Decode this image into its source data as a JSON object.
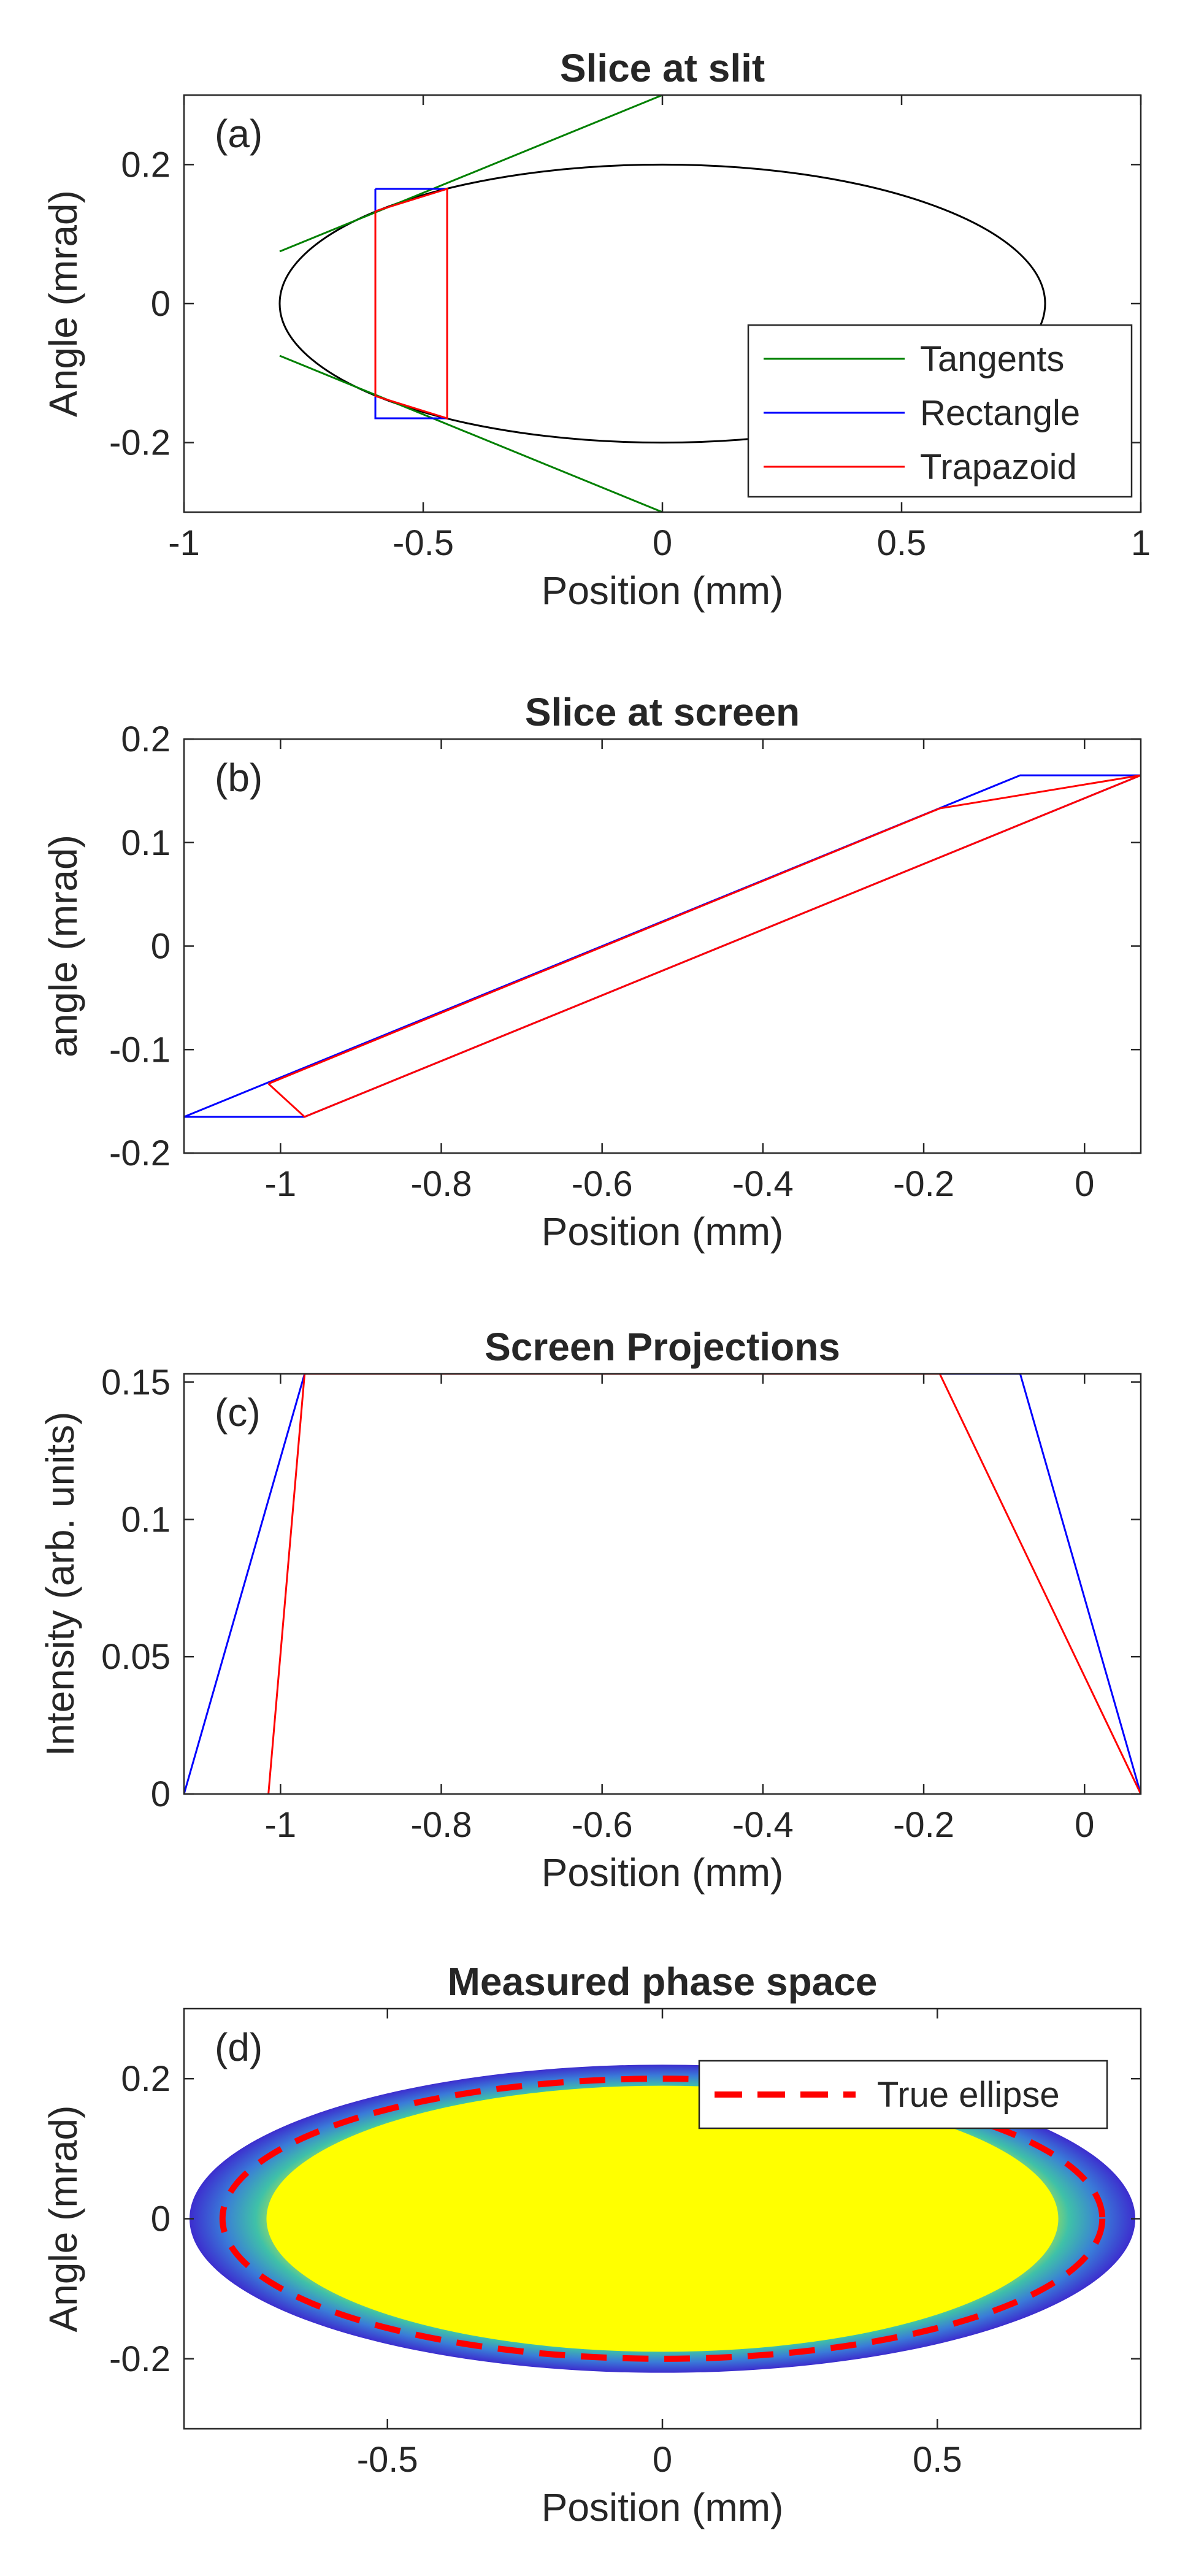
{
  "chart_data": [
    {
      "panel": "a",
      "type": "line",
      "title": "Slice at slit",
      "label": "(a)",
      "xlabel": "Position (mm)",
      "ylabel": "Angle (mrad)",
      "xlim": [
        -1,
        1
      ],
      "ylim": [
        -0.3,
        0.3
      ],
      "xticks": [
        -1,
        -0.5,
        0,
        0.5,
        1
      ],
      "xtick_labels": [
        "-1",
        "-0.5",
        "0",
        "0.5",
        "1"
      ],
      "yticks": [
        -0.2,
        0,
        0.2
      ],
      "ytick_labels": [
        "-0.2",
        "0",
        "0.2"
      ],
      "ellipse": {
        "cx": 0,
        "cy": 0,
        "a": 0.8,
        "b": 0.2,
        "color": "#000000"
      },
      "series": [
        {
          "name": "Tangents",
          "color": "#008000",
          "segments": [
            [
              [
                -0.8,
                0.075
              ],
              [
                0,
                0.3
              ]
            ],
            [
              [
                -0.8,
                -0.075
              ],
              [
                0,
                -0.3
              ]
            ]
          ]
        },
        {
          "name": "Rectangle",
          "color": "#0000ff",
          "segments": [
            [
              [
                -0.6,
                0.165
              ],
              [
                -0.45,
                0.165
              ],
              [
                -0.45,
                -0.165
              ],
              [
                -0.6,
                -0.165
              ],
              [
                -0.6,
                0.165
              ]
            ]
          ]
        },
        {
          "name": "Trapazoid",
          "color": "#ff0000",
          "segments": [
            [
              [
                -0.6,
                0.133
              ],
              [
                -0.45,
                0.165
              ],
              [
                -0.45,
                -0.165
              ],
              [
                -0.6,
                -0.133
              ],
              [
                -0.6,
                0.133
              ]
            ]
          ]
        }
      ],
      "legend": {
        "location": "bottom-right",
        "entries": [
          "Tangents",
          "Rectangle",
          "Trapazoid"
        ]
      }
    },
    {
      "panel": "b",
      "type": "line",
      "title": "Slice at screen",
      "label": "(b)",
      "xlabel": "Position (mm)",
      "ylabel": "angle (mrad)",
      "xlim": [
        -1.12,
        0.07
      ],
      "ylim": [
        -0.2,
        0.2
      ],
      "xticks": [
        -1,
        -0.8,
        -0.6,
        -0.4,
        -0.2,
        0
      ],
      "xtick_labels": [
        "-1",
        "-0.8",
        "-0.6",
        "-0.4",
        "-0.2",
        "0"
      ],
      "yticks": [
        -0.2,
        -0.1,
        0,
        0.1,
        0.2
      ],
      "ytick_labels": [
        "-0.2",
        "-0.1",
        "0",
        "0.1",
        "0.2"
      ],
      "series": [
        {
          "name": "Rectangle",
          "color": "#0000ff",
          "segments": [
            [
              [
                -1.12,
                -0.165
              ],
              [
                -0.97,
                -0.165
              ],
              [
                0.07,
                0.165
              ],
              [
                -0.08,
                0.165
              ],
              [
                -1.12,
                -0.165
              ]
            ]
          ]
        },
        {
          "name": "Trapazoid",
          "color": "#ff0000",
          "segments": [
            [
              [
                -1.015,
                -0.133
              ],
              [
                -0.97,
                -0.165
              ],
              [
                0.07,
                0.165
              ],
              [
                -0.18,
                0.133
              ],
              [
                -1.015,
                -0.133
              ]
            ]
          ]
        }
      ]
    },
    {
      "panel": "c",
      "type": "line",
      "title": "Screen Projections",
      "label": "(c)",
      "xlabel": "Position (mm)",
      "ylabel": "Intensity (arb. units)",
      "xlim": [
        -1.12,
        0.07
      ],
      "ylim": [
        0,
        0.153
      ],
      "xticks": [
        -1,
        -0.8,
        -0.6,
        -0.4,
        -0.2,
        0
      ],
      "xtick_labels": [
        "-1",
        "-0.8",
        "-0.6",
        "-0.4",
        "-0.2",
        "0"
      ],
      "yticks": [
        0,
        0.05,
        0.1,
        0.15
      ],
      "ytick_labels": [
        "0",
        "0.05",
        "0.1",
        "0.15"
      ],
      "series": [
        {
          "name": "Rectangle",
          "color": "#0000ff",
          "segments": [
            [
              [
                -1.12,
                0
              ],
              [
                -0.97,
                0.153
              ],
              [
                -0.08,
                0.153
              ],
              [
                0.07,
                0
              ]
            ]
          ]
        },
        {
          "name": "Trapazoid",
          "color": "#ff0000",
          "segments": [
            [
              [
                -1.015,
                0
              ],
              [
                -0.97,
                0.153
              ],
              [
                -0.18,
                0.153
              ],
              [
                0.07,
                0
              ]
            ]
          ]
        }
      ]
    },
    {
      "panel": "d",
      "type": "heatmap",
      "title": "Measured phase space",
      "label": "(d)",
      "xlabel": "Position (mm)",
      "ylabel": "Angle (mrad)",
      "xlim": [
        -0.87,
        0.87
      ],
      "ylim": [
        -0.3,
        0.3
      ],
      "xticks": [
        -0.5,
        0,
        0.5
      ],
      "xtick_labels": [
        "-0.5",
        "0",
        "0.5"
      ],
      "yticks": [
        -0.2,
        0,
        0.2
      ],
      "ytick_labels": [
        "-0.2",
        "0",
        "0.2"
      ],
      "measured": {
        "outer_a": 0.86,
        "outer_b": 0.22,
        "core_a": 0.72,
        "core_b": 0.19,
        "colors": [
          "#ffff00",
          "#f5f518",
          "#3fc1a8",
          "#3a7bd8",
          "#3c2dce"
        ]
      },
      "true_ellipse": {
        "name": "True ellipse",
        "a": 0.8,
        "b": 0.2,
        "color": "#ff0000",
        "style": "dashed"
      },
      "legend": {
        "location": "top-right",
        "entries": [
          "True ellipse"
        ]
      }
    }
  ]
}
